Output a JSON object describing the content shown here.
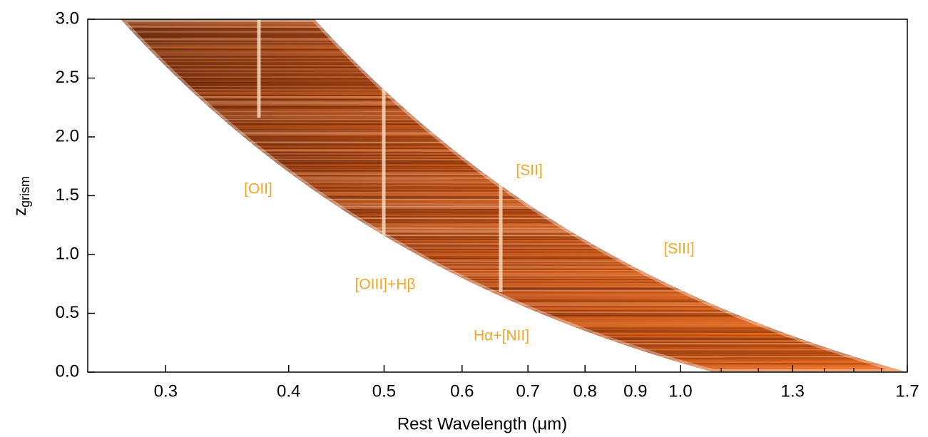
{
  "chart_data": {
    "type": "density",
    "xlabel": "Rest Wavelength (μm)",
    "ylabel": {
      "main": "z",
      "sub": "grism"
    },
    "xscale": "log",
    "xlim": [
      0.25,
      1.7
    ],
    "ylim": [
      0,
      3
    ],
    "xticks": [
      0.3,
      0.4,
      0.5,
      0.6,
      0.7,
      0.8,
      0.9,
      {
        "value": 1,
        "label": "1.0"
      },
      1.3,
      1.7
    ],
    "xminorticks": [
      1.1,
      1.2,
      1.4,
      1.5,
      1.6
    ],
    "yticks": [
      {
        "value": 0,
        "label": "0.0"
      },
      0.5,
      {
        "value": 1,
        "label": "1.0"
      },
      1.5,
      {
        "value": 2,
        "label": "2.0"
      },
      2.5,
      {
        "value": 3,
        "label": "3.0"
      }
    ],
    "color": "#e0661a",
    "annotations": [
      "[OII]",
      "[OIII]+Hβ",
      "[SII]",
      "[SIII]",
      "Hα+[NII]"
    ]
  }
}
